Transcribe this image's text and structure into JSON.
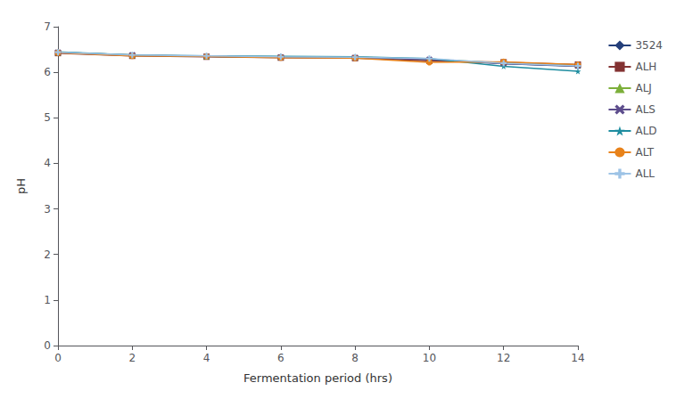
{
  "chart_data": {
    "type": "line",
    "x": [
      0,
      2,
      4,
      6,
      8,
      10,
      12,
      14
    ],
    "series": [
      {
        "name": "3524",
        "color": "#243F7A",
        "marker": "diamond",
        "values": [
          6.43,
          6.37,
          6.35,
          6.34,
          6.33,
          6.28,
          6.19,
          6.13
        ]
      },
      {
        "name": "ALH",
        "color": "#833232",
        "marker": "square",
        "values": [
          6.42,
          6.36,
          6.34,
          6.32,
          6.31,
          6.25,
          6.22,
          6.17
        ]
      },
      {
        "name": "ALJ",
        "color": "#7CAF3A",
        "marker": "triangle",
        "values": [
          6.44,
          6.38,
          6.35,
          6.34,
          6.33,
          6.29,
          6.2,
          6.15
        ]
      },
      {
        "name": "ALS",
        "color": "#5C4C8C",
        "marker": "x",
        "values": [
          6.44,
          6.38,
          6.35,
          6.33,
          6.32,
          6.28,
          6.19,
          6.14
        ]
      },
      {
        "name": "ALD",
        "color": "#1E8DA0",
        "marker": "star",
        "values": [
          6.45,
          6.38,
          6.36,
          6.35,
          6.34,
          6.3,
          6.13,
          6.02
        ]
      },
      {
        "name": "ALT",
        "color": "#E8821A",
        "marker": "circle",
        "values": [
          6.43,
          6.36,
          6.35,
          6.32,
          6.31,
          6.22,
          6.23,
          6.17
        ]
      },
      {
        "name": "ALL",
        "color": "#9DC3E6",
        "marker": "plus",
        "values": [
          6.44,
          6.38,
          6.36,
          6.34,
          6.33,
          6.3,
          6.2,
          6.14
        ]
      }
    ],
    "xlabel": "Fermentation period (hrs)",
    "ylabel": "pH",
    "xlim": [
      0,
      14
    ],
    "ylim": [
      0,
      7
    ],
    "xticks": [
      0,
      2,
      4,
      6,
      8,
      10,
      12,
      14
    ],
    "yticks": [
      0,
      1,
      2,
      3,
      4,
      5,
      6,
      7
    ],
    "grid": false,
    "legend": "right"
  }
}
